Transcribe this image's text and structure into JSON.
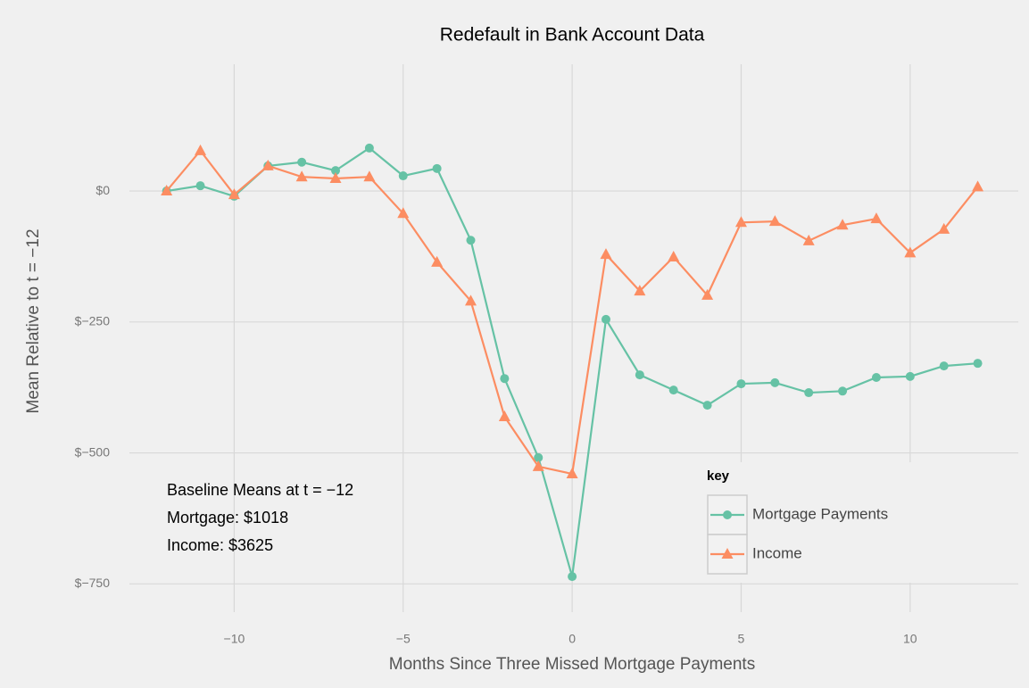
{
  "chart_data": {
    "type": "line",
    "title": "Redefault in Bank Account Data",
    "x_label": "Months Since Three Missed Mortgage Payments",
    "y_label": "Mean Relative to t = −12",
    "x": [
      -12,
      -11,
      -10,
      -9,
      -8,
      -7,
      -6,
      -5,
      -4,
      -3,
      -2,
      -1,
      0,
      1,
      2,
      3,
      4,
      5,
      6,
      7,
      8,
      9,
      10,
      11,
      12
    ],
    "series": [
      {
        "name": "Mortgage Payments",
        "color": "#66c2a5",
        "marker": "circle",
        "values": [
          0,
          10,
          -10,
          48,
          55,
          39,
          82,
          29,
          43,
          -94,
          -358,
          -509,
          -736,
          -245,
          -351,
          -380,
          -409,
          -368,
          -366,
          -385,
          -382,
          -356,
          -354,
          -334,
          -329
        ]
      },
      {
        "name": "Income",
        "color": "#fc8d62",
        "marker": "triangle",
        "values": [
          0,
          77,
          -7,
          48,
          27,
          24,
          27,
          -43,
          -136,
          -210,
          -431,
          -526,
          -540,
          -121,
          -191,
          -126,
          -199,
          -60,
          -58,
          -95,
          -65,
          -53,
          -118,
          -73,
          8
        ]
      }
    ],
    "xlim": [
      -13.1,
      13.2
    ],
    "xticks": [
      {
        "value": -10,
        "label": "−10"
      },
      {
        "value": -5,
        "label": "−5"
      },
      0,
      5,
      10
    ],
    "ylim": [
      -804,
      242
    ],
    "yticks": [
      {
        "value": 0,
        "label": "$0"
      },
      {
        "value": -250,
        "label": "$−250"
      },
      {
        "value": -500,
        "label": "$−500"
      },
      {
        "value": -750,
        "label": "$−750"
      }
    ],
    "grid": true,
    "legend_title": "key",
    "legend_position": "bottom-right",
    "annotations": [
      "Baseline Means at t = −12",
      "Mortgage: $1018",
      "Income: $3625"
    ]
  }
}
